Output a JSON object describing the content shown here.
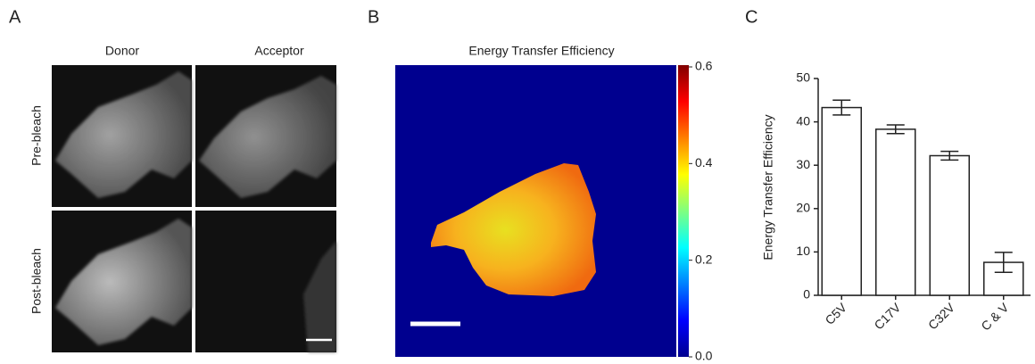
{
  "panels": {
    "a": {
      "label": "A",
      "columns": [
        "Donor",
        "Acceptor"
      ],
      "rows": [
        "Pre-bleach",
        "Post-bleach"
      ]
    },
    "b": {
      "label": "B"
    },
    "c": {
      "label": "C"
    }
  },
  "chart_data": [
    {
      "type": "heatmap",
      "title": "Energy Transfer Efficiency",
      "colorbar_lim": [
        0,
        0.6
      ],
      "colorbar_ticks": [
        {
          "value": 0,
          "label": "0.0"
        },
        0.2,
        0.4,
        0.6
      ],
      "colormap": "jet"
    },
    {
      "type": "bar",
      "ylabel": "Energy Transfer Efficiency",
      "categories": [
        "C5V",
        "C17V",
        "C32V",
        "C & V"
      ],
      "values": [
        43.3,
        38.3,
        32.2,
        7.6
      ],
      "errors": [
        1.7,
        1.0,
        1.0,
        2.3
      ],
      "color": "#ffffff",
      "ylim": [
        0,
        50
      ],
      "yticks": [
        0,
        10,
        20,
        30,
        40,
        50
      ]
    }
  ]
}
